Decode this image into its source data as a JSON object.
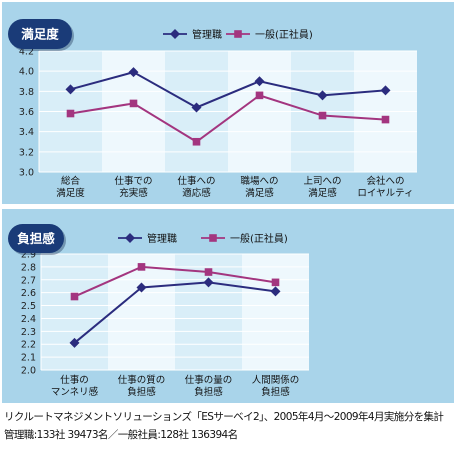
{
  "colors": {
    "panel_bg": "#a9d4ea",
    "stripe_dark": "#d9eef8",
    "stripe_light": "#eef8fd",
    "badge_bg": "#1a3b78",
    "manager_line": "#2b2c7e",
    "general_line": "#a3357f"
  },
  "chart_data": [
    {
      "type": "line",
      "badge": "満足度",
      "categories": [
        "総合\n満足度",
        "仕事での\n充実感",
        "仕事への\n適応感",
        "職場への\n満足感",
        "上司への\n満足感",
        "会社への\nロイヤルティ"
      ],
      "series": [
        {
          "name": "管理職",
          "marker": "diamond",
          "values": [
            3.82,
            3.99,
            3.64,
            3.9,
            3.76,
            3.81
          ]
        },
        {
          "name": "一般(正社員)",
          "marker": "square",
          "values": [
            3.58,
            3.68,
            3.3,
            3.76,
            3.56,
            3.52
          ]
        }
      ],
      "ylim": [
        3.0,
        4.2
      ],
      "yticks": [
        "3.0",
        "3.2",
        "3.4",
        "3.6",
        "3.8",
        "4.0",
        "4.2"
      ],
      "grid": true,
      "legend": "top"
    },
    {
      "type": "line",
      "badge": "負担感",
      "categories": [
        "仕事の\nマンネリ感",
        "仕事の質の\n負担感",
        "仕事の量の\n負担感",
        "人間関係の\n負担感"
      ],
      "series": [
        {
          "name": "管理職",
          "marker": "diamond",
          "values": [
            2.21,
            2.64,
            2.68,
            2.61
          ]
        },
        {
          "name": "一般(正社員)",
          "marker": "square",
          "values": [
            2.57,
            2.8,
            2.76,
            2.68
          ]
        }
      ],
      "ylim": [
        2.0,
        2.9
      ],
      "yticks": [
        "2.0",
        "2.1",
        "2.2",
        "2.3",
        "2.4",
        "2.5",
        "2.6",
        "2.7",
        "2.8",
        "2.9"
      ],
      "grid": true,
      "legend": "top"
    }
  ],
  "footnote": {
    "line1": "リクルートマネジメントソリューションズ「ESサーベイ2」、2005年4月〜2009年4月実施分を集計",
    "line2": "管理職:133社 39473名／一般社員:128社 136394名"
  }
}
